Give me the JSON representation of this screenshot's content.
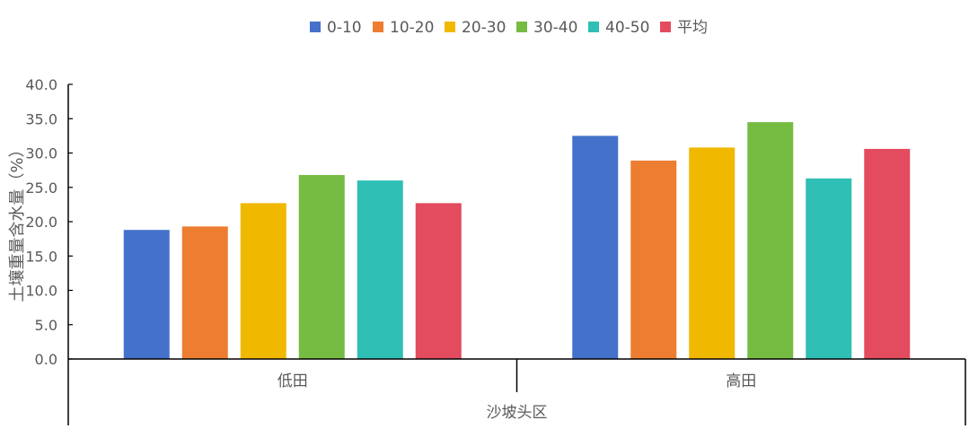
{
  "chart_data": {
    "type": "bar",
    "categories": [
      "低田",
      "高田"
    ],
    "group_label": "沙坡头区",
    "ylabel": "土壤重量含水量（%）",
    "xlabel": "",
    "title": "",
    "ylim": [
      0,
      40
    ],
    "ytick_step": 5,
    "ytick_format": "0.0",
    "legend_position": "top",
    "grid": false,
    "series": [
      {
        "name": "0-10",
        "color": "#4472CA",
        "values": [
          18.8,
          32.5
        ]
      },
      {
        "name": "10-20",
        "color": "#ED7D31",
        "values": [
          19.3,
          28.9
        ]
      },
      {
        "name": "20-30",
        "color": "#F1B800",
        "values": [
          22.7,
          30.8
        ]
      },
      {
        "name": "30-40",
        "color": "#76BC43",
        "values": [
          26.8,
          34.5
        ]
      },
      {
        "name": "40-50",
        "color": "#2FBFB4",
        "values": [
          26.0,
          26.3
        ]
      },
      {
        "name": "平均",
        "color": "#E34B5F",
        "values": [
          22.7,
          30.6
        ]
      }
    ]
  }
}
